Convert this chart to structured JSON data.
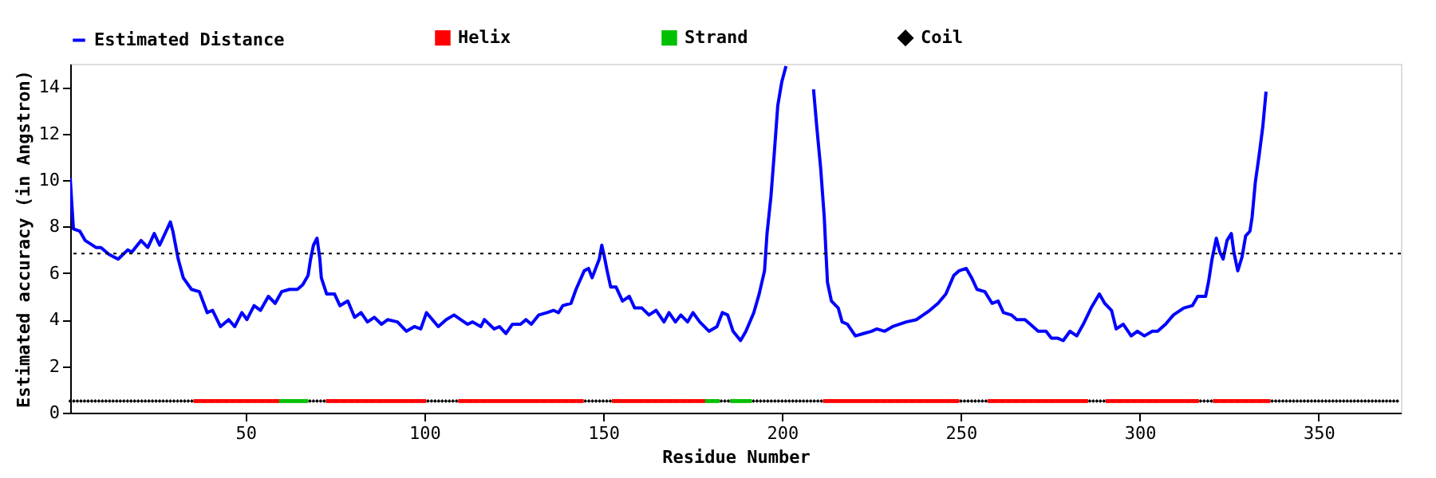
{
  "chart_data": {
    "type": "line",
    "xlabel": "Residue Number",
    "ylabel": "Estimated accuracy (in Angstron)",
    "xlim": [
      1,
      373
    ],
    "ylim": [
      0,
      15
    ],
    "xticks": [
      50,
      100,
      150,
      200,
      250,
      300,
      350
    ],
    "yticks": [
      0,
      2,
      4,
      6,
      8,
      10,
      12,
      14
    ],
    "grid": false,
    "legend": "top",
    "ref_lines": [
      {
        "axis": "y",
        "value": 6.84,
        "color": "#000000",
        "line_style": "dotted"
      }
    ],
    "series": [
      {
        "name": "Estimated Distance",
        "color": "#0000ff",
        "line_style": "solid",
        "marker": "none",
        "x": [
          1.0,
          1.4,
          1.9,
          3.7,
          5.2,
          8.2,
          9.6,
          11.9,
          14.4,
          17.1,
          18.2,
          20.8,
          22.7,
          24.5,
          26.0,
          29.0,
          29.7,
          31.2,
          32.6,
          34.9,
          37.1,
          39.3,
          40.8,
          43.0,
          45.3,
          47.0,
          49.0,
          50.4,
          52.4,
          54.2,
          56.4,
          58.3,
          60.1,
          62.3,
          64.5,
          66.0,
          67.5,
          68.2,
          69.0,
          70.0,
          70.8,
          71.2,
          72.7,
          74.9,
          76.4,
          78.6,
          80.5,
          82.3,
          84.1,
          86.0,
          88.0,
          89.8,
          92.5,
          95.0,
          97.2,
          99.0,
          100.6,
          103.9,
          106.1,
          108.3,
          112.1,
          113.5,
          115.8,
          116.8,
          119.5,
          121.0,
          122.8,
          124.6,
          126.9,
          128.4,
          129.9,
          132.0,
          134.3,
          136.1,
          137.5,
          138.7,
          141.0,
          142.4,
          144.7,
          145.9,
          146.9,
          148.9,
          149.6,
          150.2,
          151.1,
          152.1,
          153.6,
          155.4,
          157.3,
          158.8,
          160.8,
          162.8,
          164.8,
          167.0,
          168.4,
          170.2,
          171.7,
          173.6,
          175.1,
          177.0,
          179.6,
          181.8,
          183.3,
          184.8,
          186.3,
          188.4,
          189.9,
          192.1,
          193.6,
          195.1,
          195.8,
          196.9,
          197.8,
          198.8,
          199.9,
          201.1,
          202.5,
          205.5,
          208.5,
          208.8,
          209.7,
          210.8,
          211.8,
          212.3,
          212.7,
          213.8,
          215.7,
          216.8,
          218.3,
          220.5,
          222.7,
          225.0,
          226.5,
          228.7,
          230.9,
          234.7,
          237.6,
          241.3,
          243.6,
          245.8,
          248.0,
          249.5,
          251.5,
          253.0,
          254.5,
          256.7,
          258.7,
          260.4,
          261.9,
          264.1,
          265.6,
          267.9,
          269.4,
          271.6,
          273.8,
          275.3,
          277.1,
          278.6,
          280.5,
          282.4,
          284.2,
          286.4,
          288.7,
          290.2,
          292.1,
          293.4,
          295.4,
          297.6,
          299.3,
          301.3,
          303.5,
          305.0,
          307.2,
          309.4,
          312.3,
          314.7,
          316.2,
          318.4,
          319.2,
          320.2,
          321.4,
          322.4,
          323.3,
          324.4,
          325.6,
          326.3,
          327.4,
          328.6,
          329.6,
          330.8,
          331.4,
          332.3,
          333.4,
          334.4,
          335.3
        ],
        "values": [
          10.1,
          9.1,
          7.9,
          7.8,
          7.4,
          7.1,
          7.1,
          6.8,
          6.6,
          7.0,
          6.9,
          7.4,
          7.1,
          7.7,
          7.2,
          8.2,
          7.8,
          6.6,
          5.8,
          5.3,
          5.2,
          4.3,
          4.4,
          3.7,
          4.0,
          3.7,
          4.3,
          4.0,
          4.6,
          4.4,
          5.0,
          4.7,
          5.2,
          5.3,
          5.3,
          5.5,
          5.9,
          6.6,
          7.2,
          7.5,
          6.6,
          5.8,
          5.1,
          5.1,
          4.6,
          4.8,
          4.1,
          4.3,
          3.9,
          4.1,
          3.8,
          4.0,
          3.9,
          3.5,
          3.7,
          3.6,
          4.3,
          3.7,
          4.0,
          4.2,
          3.8,
          3.9,
          3.7,
          4.0,
          3.6,
          3.7,
          3.4,
          3.8,
          3.8,
          4.0,
          3.8,
          4.2,
          4.3,
          4.4,
          4.3,
          4.6,
          4.7,
          5.3,
          6.1,
          6.2,
          5.8,
          6.6,
          7.2,
          6.8,
          6.1,
          5.4,
          5.4,
          4.8,
          5.0,
          4.5,
          4.5,
          4.2,
          4.4,
          3.9,
          4.3,
          3.9,
          4.2,
          3.9,
          4.3,
          3.9,
          3.5,
          3.7,
          4.3,
          4.2,
          3.5,
          3.1,
          3.5,
          4.3,
          5.1,
          6.1,
          7.7,
          9.3,
          11.1,
          13.2,
          14.2,
          14.9,
          null,
          null,
          null,
          13.9,
          12.3,
          10.5,
          8.4,
          6.8,
          5.6,
          4.8,
          4.5,
          3.9,
          3.8,
          3.3,
          3.4,
          3.5,
          3.6,
          3.5,
          3.7,
          3.9,
          4.0,
          4.4,
          4.7,
          5.1,
          5.9,
          6.1,
          6.2,
          5.8,
          5.3,
          5.2,
          4.7,
          4.8,
          4.3,
          4.2,
          4.0,
          4.0,
          3.8,
          3.5,
          3.5,
          3.2,
          3.2,
          3.1,
          3.5,
          3.3,
          3.8,
          4.5,
          5.1,
          4.7,
          4.4,
          3.6,
          3.8,
          3.3,
          3.5,
          3.3,
          3.5,
          3.5,
          3.8,
          4.2,
          4.5,
          4.6,
          5.0,
          5.0,
          5.6,
          6.6,
          7.5,
          6.9,
          6.6,
          7.4,
          7.7,
          6.9,
          6.1,
          6.7,
          7.6,
          7.8,
          8.4,
          9.9,
          11.1,
          12.3,
          13.8
        ]
      },
      {
        "name": "Helix",
        "type": "scatter",
        "color": "#ff0000",
        "marker": "square",
        "x": [
          36,
          37,
          38,
          39,
          40,
          41,
          42,
          43,
          44,
          45,
          46,
          47,
          48,
          49,
          50,
          51,
          52,
          53,
          54,
          55,
          56,
          57,
          58,
          59,
          73,
          74,
          75,
          76,
          77,
          78,
          79,
          80,
          81,
          82,
          83,
          84,
          85,
          86,
          87,
          88,
          89,
          90,
          91,
          92,
          93,
          94,
          95,
          96,
          97,
          98,
          99,
          100,
          110,
          111,
          112,
          113,
          114,
          115,
          116,
          117,
          118,
          119,
          120,
          121,
          122,
          123,
          124,
          125,
          126,
          127,
          128,
          129,
          130,
          131,
          132,
          133,
          134,
          135,
          136,
          137,
          138,
          139,
          140,
          141,
          142,
          143,
          144,
          153,
          154,
          155,
          156,
          157,
          158,
          159,
          160,
          161,
          162,
          163,
          164,
          165,
          166,
          167,
          168,
          169,
          170,
          171,
          172,
          173,
          174,
          175,
          176,
          177,
          178,
          212,
          213,
          214,
          215,
          216,
          217,
          218,
          219,
          220,
          221,
          222,
          223,
          224,
          225,
          226,
          227,
          228,
          229,
          230,
          231,
          232,
          233,
          234,
          235,
          236,
          237,
          238,
          239,
          240,
          241,
          242,
          243,
          244,
          245,
          246,
          247,
          248,
          249,
          258,
          259,
          260,
          261,
          262,
          263,
          264,
          265,
          266,
          267,
          268,
          269,
          270,
          271,
          272,
          273,
          274,
          275,
          276,
          277,
          278,
          279,
          280,
          281,
          282,
          283,
          284,
          285,
          291,
          292,
          293,
          294,
          295,
          296,
          297,
          298,
          299,
          300,
          301,
          302,
          303,
          304,
          305,
          306,
          307,
          308,
          309,
          310,
          311,
          312,
          313,
          314,
          315,
          316,
          321,
          322,
          323,
          324,
          325,
          326,
          327,
          328,
          329,
          330,
          331,
          332,
          333,
          334,
          335,
          336
        ],
        "values": [
          0.5,
          0.5,
          0.5,
          0.5,
          0.5,
          0.5,
          0.5,
          0.5,
          0.5,
          0.5,
          0.5,
          0.5,
          0.5,
          0.5,
          0.5,
          0.5,
          0.5,
          0.5,
          0.5,
          0.5,
          0.5,
          0.5,
          0.5,
          0.5,
          0.5,
          0.5,
          0.5,
          0.5,
          0.5,
          0.5,
          0.5,
          0.5,
          0.5,
          0.5,
          0.5,
          0.5,
          0.5,
          0.5,
          0.5,
          0.5,
          0.5,
          0.5,
          0.5,
          0.5,
          0.5,
          0.5,
          0.5,
          0.5,
          0.5,
          0.5,
          0.5,
          0.5,
          0.5,
          0.5,
          0.5,
          0.5,
          0.5,
          0.5,
          0.5,
          0.5,
          0.5,
          0.5,
          0.5,
          0.5,
          0.5,
          0.5,
          0.5,
          0.5,
          0.5,
          0.5,
          0.5,
          0.5,
          0.5,
          0.5,
          0.5,
          0.5,
          0.5,
          0.5,
          0.5,
          0.5,
          0.5,
          0.5,
          0.5,
          0.5,
          0.5,
          0.5,
          0.5,
          0.5,
          0.5,
          0.5,
          0.5,
          0.5,
          0.5,
          0.5,
          0.5,
          0.5,
          0.5,
          0.5,
          0.5,
          0.5,
          0.5,
          0.5,
          0.5,
          0.5,
          0.5,
          0.5,
          0.5,
          0.5,
          0.5,
          0.5,
          0.5,
          0.5,
          0.5,
          0.5,
          0.5,
          0.5,
          0.5,
          0.5,
          0.5,
          0.5,
          0.5,
          0.5,
          0.5,
          0.5,
          0.5,
          0.5,
          0.5,
          0.5,
          0.5,
          0.5,
          0.5,
          0.5,
          0.5,
          0.5,
          0.5,
          0.5,
          0.5,
          0.5,
          0.5,
          0.5,
          0.5,
          0.5,
          0.5,
          0.5,
          0.5,
          0.5,
          0.5,
          0.5,
          0.5,
          0.5,
          0.5,
          0.5,
          0.5,
          0.5,
          0.5,
          0.5,
          0.5,
          0.5,
          0.5,
          0.5,
          0.5,
          0.5,
          0.5,
          0.5,
          0.5,
          0.5,
          0.5,
          0.5,
          0.5,
          0.5,
          0.5,
          0.5,
          0.5,
          0.5,
          0.5,
          0.5,
          0.5,
          0.5,
          0.5,
          0.5,
          0.5,
          0.5,
          0.5,
          0.5,
          0.5,
          0.5,
          0.5,
          0.5,
          0.5,
          0.5,
          0.5,
          0.5,
          0.5,
          0.5,
          0.5,
          0.5,
          0.5,
          0.5,
          0.5,
          0.5,
          0.5,
          0.5,
          0.5,
          0.5,
          0.5,
          0.5,
          0.5,
          0.5,
          0.5,
          0.5,
          0.5,
          0.5,
          0.5,
          0.5,
          0.5,
          0.5,
          0.5,
          0.5,
          0.5,
          0.5,
          0.5
        ]
      },
      {
        "name": "Strand",
        "type": "scatter",
        "color": "#00c000",
        "marker": "square",
        "x": [
          60,
          61,
          62,
          63,
          64,
          65,
          66,
          67,
          179,
          180,
          181,
          182,
          186,
          187,
          188,
          189,
          190,
          191
        ],
        "values": [
          0.5,
          0.5,
          0.5,
          0.5,
          0.5,
          0.5,
          0.5,
          0.5,
          0.5,
          0.5,
          0.5,
          0.5,
          0.5,
          0.5,
          0.5,
          0.5,
          0.5,
          0.5
        ]
      },
      {
        "name": "Coil",
        "type": "scatter",
        "color": "#000000",
        "marker": "diamond",
        "x": [
          1,
          2,
          3,
          4,
          5,
          6,
          7,
          8,
          9,
          10,
          11,
          12,
          13,
          14,
          15,
          16,
          17,
          18,
          19,
          20,
          21,
          22,
          23,
          24,
          25,
          26,
          27,
          28,
          29,
          30,
          31,
          32,
          33,
          34,
          35,
          68,
          69,
          70,
          71,
          72,
          101,
          102,
          103,
          104,
          105,
          106,
          107,
          108,
          109,
          145,
          146,
          147,
          148,
          149,
          150,
          151,
          152,
          183,
          184,
          185,
          192,
          193,
          194,
          195,
          196,
          197,
          198,
          199,
          200,
          201,
          202,
          203,
          204,
          205,
          206,
          207,
          208,
          209,
          210,
          211,
          250,
          251,
          252,
          253,
          254,
          255,
          256,
          257,
          286,
          287,
          288,
          289,
          290,
          317,
          318,
          319,
          320,
          337,
          338,
          339,
          340,
          341,
          342,
          343,
          344,
          345,
          346,
          347,
          348,
          349,
          350,
          351,
          352,
          353,
          354,
          355,
          356,
          357,
          358,
          359,
          360,
          361,
          362,
          363,
          364,
          365,
          366,
          367,
          368,
          369,
          370,
          371,
          372
        ],
        "values": [
          0.5,
          0.5,
          0.5,
          0.5,
          0.5,
          0.5,
          0.5,
          0.5,
          0.5,
          0.5,
          0.5,
          0.5,
          0.5,
          0.5,
          0.5,
          0.5,
          0.5,
          0.5,
          0.5,
          0.5,
          0.5,
          0.5,
          0.5,
          0.5,
          0.5,
          0.5,
          0.5,
          0.5,
          0.5,
          0.5,
          0.5,
          0.5,
          0.5,
          0.5,
          0.5,
          0.5,
          0.5,
          0.5,
          0.5,
          0.5,
          0.5,
          0.5,
          0.5,
          0.5,
          0.5,
          0.5,
          0.5,
          0.5,
          0.5,
          0.5,
          0.5,
          0.5,
          0.5,
          0.5,
          0.5,
          0.5,
          0.5,
          0.5,
          0.5,
          0.5,
          0.5,
          0.5,
          0.5,
          0.5,
          0.5,
          0.5,
          0.5,
          0.5,
          0.5,
          0.5,
          0.5,
          0.5,
          0.5,
          0.5,
          0.5,
          0.5,
          0.5,
          0.5,
          0.5,
          0.5,
          0.5,
          0.5,
          0.5,
          0.5,
          0.5,
          0.5,
          0.5,
          0.5,
          0.5,
          0.5,
          0.5,
          0.5,
          0.5,
          0.5,
          0.5,
          0.5,
          0.5,
          0.5,
          0.5,
          0.5,
          0.5,
          0.5,
          0.5,
          0.5,
          0.5,
          0.5,
          0.5,
          0.5,
          0.5,
          0.5,
          0.5,
          0.5,
          0.5,
          0.5,
          0.5,
          0.5,
          0.5,
          0.5,
          0.5,
          0.5,
          0.5,
          0.5,
          0.5,
          0.5,
          0.5,
          0.5,
          0.5,
          0.5,
          0.5,
          0.5,
          0.5,
          0.5,
          0.5
        ]
      }
    ]
  }
}
